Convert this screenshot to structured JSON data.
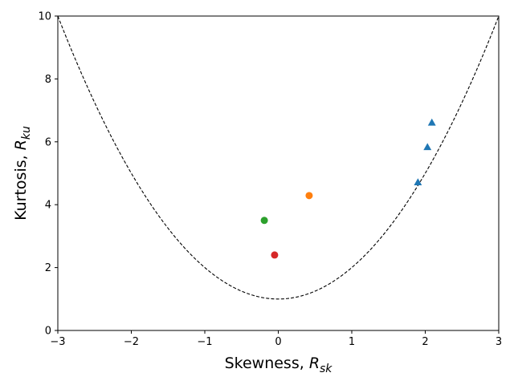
{
  "chart_data": {
    "type": "scatter",
    "xlabel": {
      "prefix": "Skewness, ",
      "symbol": "R",
      "subscript": "sk"
    },
    "ylabel": {
      "prefix": "Kurtosis, ",
      "symbol": "R",
      "subscript": "ku"
    },
    "xlim": [
      -3,
      3
    ],
    "ylim": [
      0,
      10
    ],
    "xticks": [
      -3,
      -2,
      -1,
      0,
      1,
      2,
      3
    ],
    "xtick_labels": [
      "−3",
      "−2",
      "−1",
      "0",
      "1",
      "2",
      "3"
    ],
    "yticks": [
      0,
      2,
      4,
      6,
      8,
      10
    ],
    "ytick_labels": [
      "0",
      "2",
      "4",
      "6",
      "8",
      "10"
    ],
    "grid": false,
    "legend": "none",
    "boundary_curve": {
      "equation": "y = x^2 + 1",
      "style": "dashed",
      "color": "#000000"
    },
    "series": [
      {
        "marker": "triangle",
        "color": "#1f77b4",
        "points": [
          [
            1.9,
            4.7
          ],
          [
            2.03,
            5.82
          ],
          [
            2.09,
            6.6
          ]
        ]
      },
      {
        "marker": "circle",
        "color": "#ff7f0e",
        "points": [
          [
            0.42,
            4.29
          ]
        ]
      },
      {
        "marker": "circle",
        "color": "#2ca02c",
        "points": [
          [
            -0.19,
            3.5
          ]
        ]
      },
      {
        "marker": "circle",
        "color": "#d62728",
        "points": [
          [
            -0.05,
            2.4
          ]
        ]
      }
    ]
  }
}
